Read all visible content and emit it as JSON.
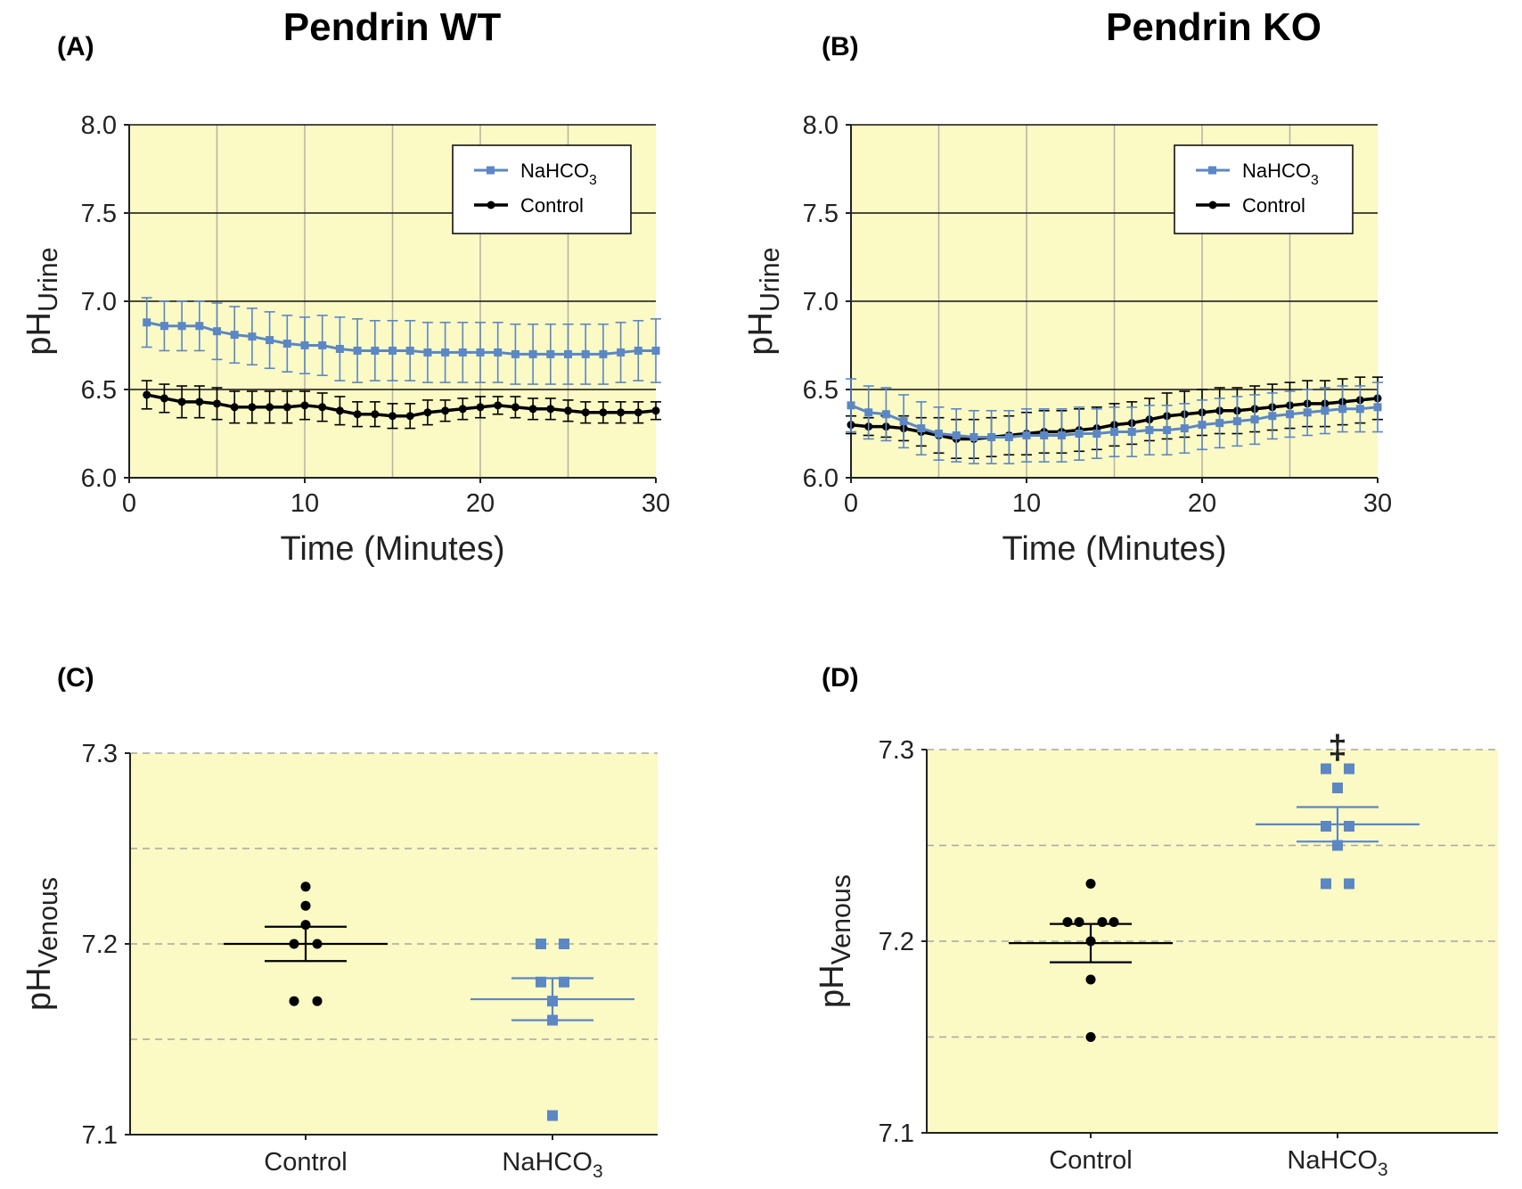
{
  "figure": {
    "col_titles": [
      "Pendrin WT",
      "Pendrin KO"
    ],
    "panel_letters": [
      "(A)",
      "(B)",
      "(C)",
      "(D)"
    ]
  },
  "colors": {
    "plot_bg": "#fbf9c4",
    "nahco3": "#5b87c5",
    "control": "#000000",
    "grid_v": "#b3b3a8",
    "grid_dash": "#a8a8a0"
  },
  "chart_data": [
    {
      "panel": "(A)",
      "type": "line",
      "title": "Pendrin WT",
      "xlabel": "Time (Minutes)",
      "ylabel": "pH",
      "ylabel_sub": "Urine",
      "xlim": [
        0,
        30
      ],
      "ylim": [
        6.0,
        8.0
      ],
      "xticks": [
        "0",
        "10",
        "20",
        "30"
      ],
      "yticks": [
        "6.0",
        "6.5",
        "7.0",
        "7.5",
        "8.0"
      ],
      "legend_position": "top-right",
      "series": [
        {
          "name": "NaHCO",
          "name_sub": "3",
          "x": [
            1,
            2,
            3,
            4,
            5,
            6,
            7,
            8,
            9,
            10,
            11,
            12,
            13,
            14,
            15,
            16,
            17,
            18,
            19,
            20,
            21,
            22,
            23,
            24,
            25,
            26,
            27,
            28,
            29,
            30
          ],
          "y": [
            6.88,
            6.86,
            6.86,
            6.86,
            6.83,
            6.81,
            6.8,
            6.78,
            6.76,
            6.75,
            6.75,
            6.73,
            6.72,
            6.72,
            6.72,
            6.72,
            6.71,
            6.71,
            6.71,
            6.71,
            6.71,
            6.7,
            6.7,
            6.7,
            6.7,
            6.7,
            6.7,
            6.71,
            6.72,
            6.72
          ],
          "err": [
            0.14,
            0.14,
            0.14,
            0.14,
            0.16,
            0.16,
            0.16,
            0.16,
            0.16,
            0.16,
            0.17,
            0.18,
            0.18,
            0.17,
            0.17,
            0.17,
            0.17,
            0.17,
            0.17,
            0.17,
            0.17,
            0.17,
            0.17,
            0.17,
            0.17,
            0.17,
            0.17,
            0.17,
            0.17,
            0.18
          ]
        },
        {
          "name": "Control",
          "x": [
            1,
            2,
            3,
            4,
            5,
            6,
            7,
            8,
            9,
            10,
            11,
            12,
            13,
            14,
            15,
            16,
            17,
            18,
            19,
            20,
            21,
            22,
            23,
            24,
            25,
            26,
            27,
            28,
            29,
            30
          ],
          "y": [
            6.47,
            6.45,
            6.43,
            6.43,
            6.42,
            6.4,
            6.4,
            6.4,
            6.4,
            6.41,
            6.4,
            6.38,
            6.36,
            6.36,
            6.35,
            6.35,
            6.37,
            6.38,
            6.39,
            6.4,
            6.41,
            6.4,
            6.39,
            6.39,
            6.38,
            6.37,
            6.37,
            6.37,
            6.37,
            6.38
          ],
          "err": [
            0.08,
            0.08,
            0.09,
            0.09,
            0.09,
            0.09,
            0.09,
            0.09,
            0.09,
            0.08,
            0.08,
            0.08,
            0.07,
            0.07,
            0.07,
            0.07,
            0.07,
            0.06,
            0.06,
            0.06,
            0.05,
            0.06,
            0.06,
            0.06,
            0.06,
            0.06,
            0.06,
            0.06,
            0.06,
            0.05
          ]
        }
      ]
    },
    {
      "panel": "(B)",
      "type": "line",
      "title": "Pendrin KO",
      "xlabel": "Time (Minutes)",
      "ylabel": "pH",
      "ylabel_sub": "Urine",
      "xlim": [
        0,
        30
      ],
      "ylim": [
        6.0,
        8.0
      ],
      "xticks": [
        "0",
        "10",
        "20",
        "30"
      ],
      "yticks": [
        "6.0",
        "6.5",
        "7.0",
        "7.5",
        "8.0"
      ],
      "legend_position": "top-right",
      "series": [
        {
          "name": "NaHCO",
          "name_sub": "3",
          "x": [
            0,
            1,
            2,
            3,
            4,
            5,
            6,
            7,
            8,
            9,
            10,
            11,
            12,
            13,
            14,
            15,
            16,
            17,
            18,
            19,
            20,
            21,
            22,
            23,
            24,
            25,
            26,
            27,
            28,
            29,
            30
          ],
          "y": [
            6.41,
            6.37,
            6.36,
            6.32,
            6.28,
            6.25,
            6.24,
            6.23,
            6.23,
            6.23,
            6.24,
            6.24,
            6.24,
            6.25,
            6.25,
            6.26,
            6.26,
            6.27,
            6.27,
            6.28,
            6.3,
            6.31,
            6.32,
            6.33,
            6.35,
            6.36,
            6.37,
            6.38,
            6.39,
            6.39,
            6.4
          ],
          "err": [
            0.15,
            0.15,
            0.15,
            0.15,
            0.15,
            0.15,
            0.15,
            0.15,
            0.15,
            0.15,
            0.15,
            0.15,
            0.15,
            0.15,
            0.14,
            0.14,
            0.14,
            0.14,
            0.14,
            0.14,
            0.14,
            0.14,
            0.14,
            0.14,
            0.13,
            0.13,
            0.13,
            0.13,
            0.13,
            0.13,
            0.14
          ]
        },
        {
          "name": "Control",
          "x": [
            0,
            1,
            2,
            3,
            4,
            5,
            6,
            7,
            8,
            9,
            10,
            11,
            12,
            13,
            14,
            15,
            16,
            17,
            18,
            19,
            20,
            21,
            22,
            23,
            24,
            25,
            26,
            27,
            28,
            29,
            30
          ],
          "y": [
            6.3,
            6.29,
            6.29,
            6.28,
            6.26,
            6.24,
            6.22,
            6.22,
            6.23,
            6.24,
            6.25,
            6.26,
            6.26,
            6.27,
            6.28,
            6.3,
            6.31,
            6.33,
            6.35,
            6.36,
            6.37,
            6.38,
            6.38,
            6.39,
            6.4,
            6.41,
            6.42,
            6.42,
            6.43,
            6.44,
            6.45
          ],
          "err": [
            0.05,
            0.05,
            0.06,
            0.07,
            0.08,
            0.1,
            0.11,
            0.11,
            0.11,
            0.11,
            0.12,
            0.12,
            0.12,
            0.12,
            0.12,
            0.12,
            0.12,
            0.12,
            0.13,
            0.13,
            0.13,
            0.13,
            0.13,
            0.13,
            0.13,
            0.13,
            0.13,
            0.13,
            0.13,
            0.13,
            0.12
          ]
        }
      ]
    },
    {
      "panel": "(C)",
      "type": "scatter",
      "ylabel": "pH",
      "ylabel_sub": "Venous",
      "ylim": [
        7.1,
        7.3
      ],
      "yticks": [
        "7.1",
        "7.2",
        "7.3"
      ],
      "categories": [
        "Control",
        "NaHCO"
      ],
      "category_subs": [
        "",
        "3"
      ],
      "groups": [
        {
          "category": "Control",
          "points": [
            {
              "y": 7.23,
              "dx": 0
            },
            {
              "y": 7.22,
              "dx": 0
            },
            {
              "y": 7.21,
              "dx": 0
            },
            {
              "y": 7.2,
              "dx": -1
            },
            {
              "y": 7.2,
              "dx": 1
            },
            {
              "y": 7.17,
              "dx": -1
            },
            {
              "y": 7.17,
              "dx": 1
            }
          ],
          "mean": 7.2,
          "sem": 0.009
        },
        {
          "category": "NaHCO3",
          "points": [
            {
              "y": 7.2,
              "dx": -1
            },
            {
              "y": 7.2,
              "dx": 1
            },
            {
              "y": 7.18,
              "dx": -1
            },
            {
              "y": 7.18,
              "dx": 1
            },
            {
              "y": 7.17,
              "dx": 0
            },
            {
              "y": 7.16,
              "dx": 0
            },
            {
              "y": 7.11,
              "dx": 0
            }
          ],
          "mean": 7.171,
          "sem": 0.011
        }
      ]
    },
    {
      "panel": "(D)",
      "type": "scatter",
      "ylabel": "pH",
      "ylabel_sub": "Venous",
      "ylim": [
        7.1,
        7.3
      ],
      "yticks": [
        "7.1",
        "7.2",
        "7.3"
      ],
      "categories": [
        "Control",
        "NaHCO"
      ],
      "category_subs": [
        "",
        "3"
      ],
      "annotation": "‡",
      "groups": [
        {
          "category": "Control",
          "points": [
            {
              "y": 7.23,
              "dx": 0
            },
            {
              "y": 7.21,
              "dx": -2
            },
            {
              "y": 7.21,
              "dx": -1
            },
            {
              "y": 7.21,
              "dx": 1
            },
            {
              "y": 7.21,
              "dx": 2
            },
            {
              "y": 7.2,
              "dx": 0
            },
            {
              "y": 7.18,
              "dx": 0
            },
            {
              "y": 7.15,
              "dx": 0
            }
          ],
          "mean": 7.199,
          "sem": 0.01
        },
        {
          "category": "NaHCO3",
          "points": [
            {
              "y": 7.29,
              "dx": -1
            },
            {
              "y": 7.29,
              "dx": 1
            },
            {
              "y": 7.28,
              "dx": 0
            },
            {
              "y": 7.26,
              "dx": -1
            },
            {
              "y": 7.26,
              "dx": 1
            },
            {
              "y": 7.25,
              "dx": 0
            },
            {
              "y": 7.23,
              "dx": -1
            },
            {
              "y": 7.23,
              "dx": 1
            }
          ],
          "mean": 7.261,
          "sem": 0.009
        }
      ]
    }
  ]
}
